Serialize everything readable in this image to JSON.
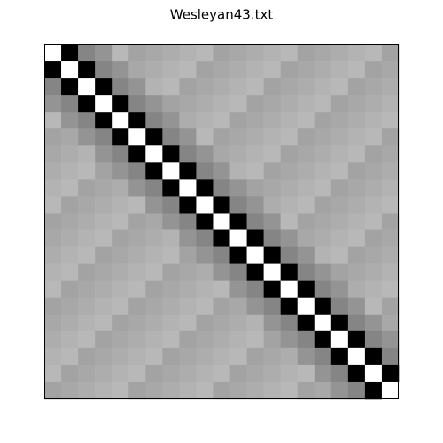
{
  "chart_data": {
    "type": "heatmap",
    "title": "Wesleyan43.txt",
    "colormap": "gray",
    "vlim": [
      0,
      1
    ],
    "matrix": [
      [
        1,
        0,
        0.52,
        0.58,
        0.72,
        0.64,
        0.66,
        0.68,
        0.7,
        0.72,
        0.64,
        0.66,
        0.68,
        0.7,
        0.72,
        0.64,
        0.66,
        0.68,
        0.7,
        0.72,
        0.64
      ],
      [
        0,
        1,
        0,
        0.52,
        0.58,
        0.66,
        0.68,
        0.7,
        0.72,
        0.64,
        0.66,
        0.68,
        0.7,
        0.72,
        0.64,
        0.66,
        0.68,
        0.7,
        0.72,
        0.64,
        0.66
      ],
      [
        0.52,
        0,
        1,
        0,
        0.52,
        0.58,
        0.7,
        0.72,
        0.64,
        0.66,
        0.68,
        0.7,
        0.72,
        0.64,
        0.66,
        0.68,
        0.7,
        0.72,
        0.64,
        0.66,
        0.68
      ],
      [
        0.58,
        0.52,
        0,
        1,
        0,
        0.52,
        0.58,
        0.64,
        0.66,
        0.68,
        0.7,
        0.72,
        0.64,
        0.66,
        0.68,
        0.7,
        0.72,
        0.64,
        0.66,
        0.68,
        0.7
      ],
      [
        0.72,
        0.58,
        0.52,
        0,
        1,
        0,
        0.52,
        0.58,
        0.68,
        0.7,
        0.72,
        0.64,
        0.66,
        0.68,
        0.7,
        0.72,
        0.64,
        0.66,
        0.68,
        0.7,
        0.72
      ],
      [
        0.64,
        0.66,
        0.58,
        0.52,
        0,
        1,
        0,
        0.52,
        0.58,
        0.72,
        0.64,
        0.66,
        0.68,
        0.7,
        0.72,
        0.64,
        0.66,
        0.68,
        0.7,
        0.72,
        0.64
      ],
      [
        0.66,
        0.68,
        0.7,
        0.58,
        0.52,
        0,
        1,
        0,
        0.52,
        0.58,
        0.66,
        0.68,
        0.7,
        0.72,
        0.64,
        0.66,
        0.68,
        0.7,
        0.72,
        0.64,
        0.66
      ],
      [
        0.68,
        0.7,
        0.72,
        0.64,
        0.58,
        0.52,
        0,
        1,
        0,
        0.52,
        0.58,
        0.7,
        0.72,
        0.64,
        0.66,
        0.68,
        0.7,
        0.72,
        0.64,
        0.66,
        0.68
      ],
      [
        0.7,
        0.72,
        0.64,
        0.66,
        0.68,
        0.58,
        0.52,
        0,
        1,
        0,
        0.52,
        0.58,
        0.64,
        0.66,
        0.68,
        0.7,
        0.72,
        0.64,
        0.66,
        0.68,
        0.7
      ],
      [
        0.72,
        0.64,
        0.66,
        0.68,
        0.7,
        0.72,
        0.58,
        0.52,
        0,
        1,
        0,
        0.52,
        0.58,
        0.68,
        0.7,
        0.72,
        0.64,
        0.66,
        0.68,
        0.7,
        0.72
      ],
      [
        0.64,
        0.66,
        0.68,
        0.7,
        0.72,
        0.64,
        0.66,
        0.58,
        0.52,
        0,
        1,
        0,
        0.52,
        0.58,
        0.72,
        0.64,
        0.66,
        0.68,
        0.7,
        0.72,
        0.64
      ],
      [
        0.66,
        0.68,
        0.7,
        0.72,
        0.64,
        0.66,
        0.68,
        0.7,
        0.58,
        0.52,
        0,
        1,
        0,
        0.52,
        0.58,
        0.66,
        0.68,
        0.7,
        0.72,
        0.64,
        0.66
      ],
      [
        0.68,
        0.7,
        0.72,
        0.64,
        0.66,
        0.68,
        0.7,
        0.72,
        0.64,
        0.58,
        0.52,
        0,
        1,
        0,
        0.52,
        0.58,
        0.7,
        0.72,
        0.64,
        0.66,
        0.68
      ],
      [
        0.7,
        0.72,
        0.64,
        0.66,
        0.68,
        0.7,
        0.72,
        0.64,
        0.66,
        0.68,
        0.58,
        0.52,
        0,
        1,
        0,
        0.52,
        0.58,
        0.64,
        0.66,
        0.68,
        0.7
      ],
      [
        0.72,
        0.64,
        0.66,
        0.68,
        0.7,
        0.72,
        0.64,
        0.66,
        0.68,
        0.7,
        0.72,
        0.58,
        0.52,
        0,
        1,
        0,
        0.52,
        0.58,
        0.68,
        0.7,
        0.72
      ],
      [
        0.64,
        0.66,
        0.68,
        0.7,
        0.72,
        0.64,
        0.66,
        0.68,
        0.7,
        0.72,
        0.64,
        0.66,
        0.58,
        0.52,
        0,
        1,
        0,
        0.52,
        0.58,
        0.72,
        0.64
      ],
      [
        0.66,
        0.68,
        0.7,
        0.72,
        0.64,
        0.66,
        0.68,
        0.7,
        0.72,
        0.64,
        0.66,
        0.68,
        0.7,
        0.58,
        0.52,
        0,
        1,
        0,
        0.52,
        0.58,
        0.66
      ],
      [
        0.68,
        0.7,
        0.72,
        0.64,
        0.66,
        0.68,
        0.7,
        0.72,
        0.64,
        0.66,
        0.68,
        0.7,
        0.72,
        0.64,
        0.58,
        0.52,
        0,
        1,
        0,
        0.52,
        0.58
      ],
      [
        0.7,
        0.72,
        0.64,
        0.66,
        0.68,
        0.7,
        0.72,
        0.64,
        0.66,
        0.68,
        0.7,
        0.72,
        0.64,
        0.66,
        0.68,
        0.58,
        0.52,
        0,
        1,
        0,
        0.52
      ],
      [
        0.72,
        0.64,
        0.66,
        0.68,
        0.7,
        0.72,
        0.64,
        0.66,
        0.68,
        0.7,
        0.72,
        0.64,
        0.66,
        0.68,
        0.7,
        0.72,
        0.58,
        0.52,
        0,
        1,
        0
      ],
      [
        0.64,
        0.66,
        0.68,
        0.7,
        0.72,
        0.64,
        0.66,
        0.68,
        0.7,
        0.72,
        0.64,
        0.66,
        0.68,
        0.7,
        0.72,
        0.64,
        0.66,
        0.58,
        0.52,
        0,
        1
      ]
    ]
  }
}
